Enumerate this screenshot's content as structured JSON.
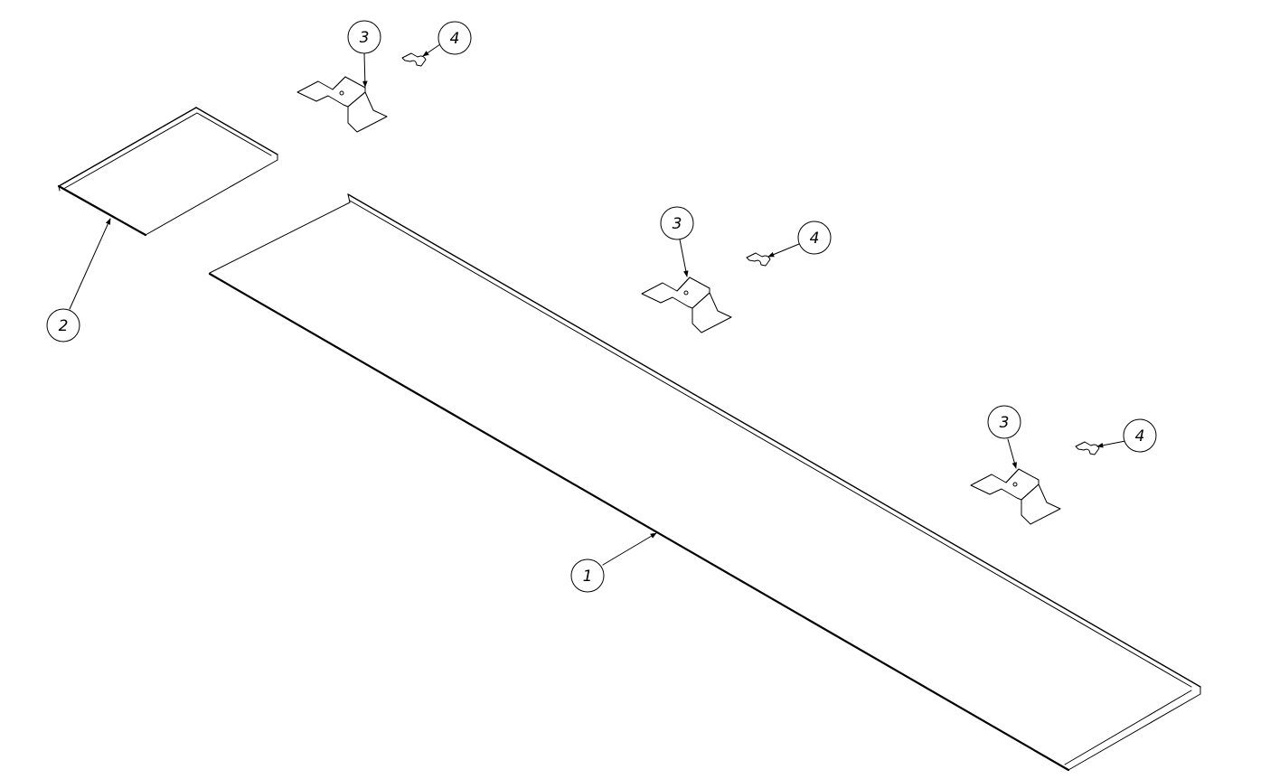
{
  "drawing": {
    "background": "#ffffff",
    "line_color": "#000000"
  },
  "balloons": [
    {
      "id": "b1",
      "label": "1"
    },
    {
      "id": "b2",
      "label": "2"
    },
    {
      "id": "b3a",
      "label": "3"
    },
    {
      "id": "b4a",
      "label": "4"
    },
    {
      "id": "b3b",
      "label": "3"
    },
    {
      "id": "b4b",
      "label": "4"
    },
    {
      "id": "b3c",
      "label": "3"
    },
    {
      "id": "b4c",
      "label": "4"
    }
  ]
}
